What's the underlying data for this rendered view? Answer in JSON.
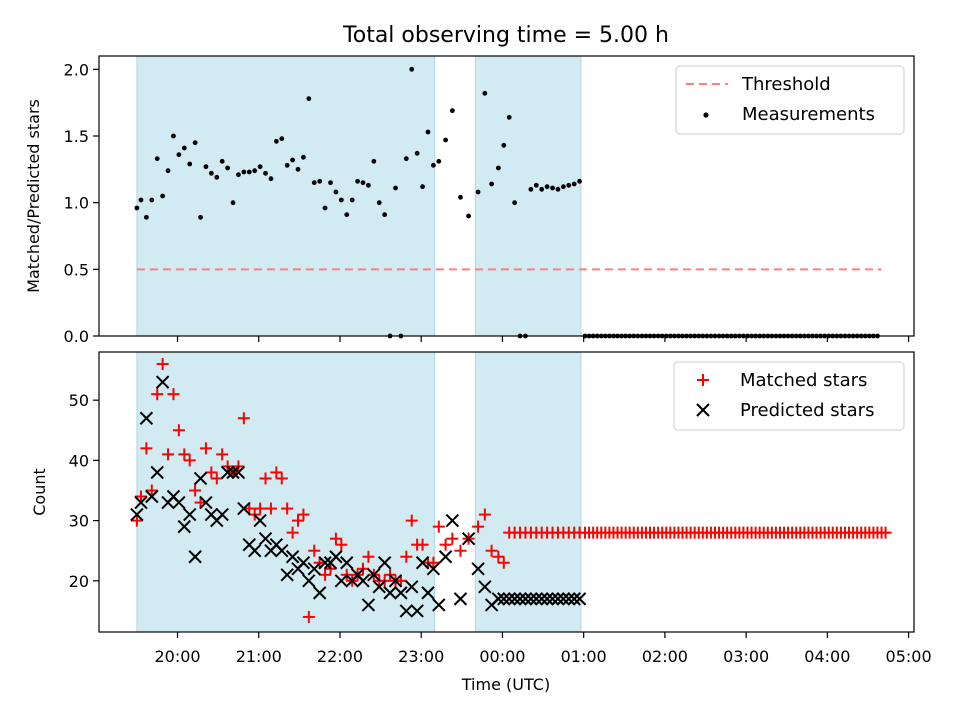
{
  "chart_data": [
    {
      "type": "scatter",
      "title": "Total observing time = 5.00 h",
      "xlabel": "",
      "ylabel": "Matched/Predicted stars",
      "ylim": [
        0,
        2.1
      ],
      "xlim": [
        "19:02",
        "05:04"
      ],
      "yticks": [
        "0.0",
        "0.5",
        "1.0",
        "1.5",
        "2.0"
      ],
      "legend": {
        "position": "top-right",
        "entries": [
          "Threshold",
          "Measurements"
        ]
      },
      "colors": {
        "threshold": "#ff7f7f",
        "measurements": "#000000",
        "shade": "#add8e6"
      },
      "shaded_ranges": [
        [
          "19:30",
          "23:10"
        ],
        [
          "23:40",
          "00:58"
        ]
      ],
      "threshold": {
        "name": "Threshold",
        "y": 0.5,
        "x": [
          "19:30",
          "04:40"
        ]
      },
      "measurements": {
        "name": "Measurements",
        "x": [
          "19:30",
          "19:33",
          "19:37",
          "19:41",
          "19:45",
          "19:49",
          "19:53",
          "19:57",
          "20:01",
          "20:05",
          "20:09",
          "20:13",
          "20:17",
          "20:21",
          "20:25",
          "20:29",
          "20:33",
          "20:37",
          "20:41",
          "20:45",
          "20:49",
          "20:53",
          "20:57",
          "21:01",
          "21:05",
          "21:09",
          "21:13",
          "21:17",
          "21:21",
          "21:25",
          "21:29",
          "21:33",
          "21:37",
          "21:41",
          "21:45",
          "21:49",
          "21:53",
          "21:57",
          "22:01",
          "22:05",
          "22:09",
          "22:13",
          "22:17",
          "22:21",
          "22:25",
          "22:29",
          "22:33",
          "22:37",
          "22:41",
          "22:45",
          "22:49",
          "22:53",
          "22:57",
          "23:01",
          "23:05",
          "23:09",
          "23:13",
          "23:18",
          "23:23",
          "23:29",
          "23:35",
          "23:42",
          "23:47",
          "23:52",
          "23:57",
          "00:01",
          "00:05",
          "00:09",
          "00:13",
          "00:17",
          "00:21",
          "00:25",
          "00:29",
          "00:33",
          "00:37",
          "00:41",
          "00:45",
          "00:49",
          "00:53",
          "00:57"
        ],
        "y": [
          0.96,
          1.02,
          0.89,
          1.02,
          1.33,
          1.05,
          1.24,
          1.5,
          1.36,
          1.41,
          1.29,
          1.45,
          0.89,
          1.27,
          1.22,
          1.19,
          1.31,
          1.26,
          1.0,
          1.21,
          1.23,
          1.23,
          1.24,
          1.27,
          1.22,
          1.18,
          1.46,
          1.48,
          1.28,
          1.32,
          1.25,
          1.34,
          1.78,
          1.15,
          1.16,
          0.96,
          1.15,
          1.08,
          1.02,
          0.91,
          1.02,
          1.16,
          1.15,
          1.13,
          1.31,
          1.0,
          0.91,
          0.0,
          1.11,
          0.0,
          1.33,
          2.0,
          1.37,
          1.12,
          1.53,
          1.28,
          1.31,
          1.47,
          1.69,
          1.04,
          0.9,
          1.08,
          1.82,
          1.14,
          1.26,
          1.43,
          1.64,
          1.0,
          0.0,
          0.0,
          1.1,
          1.13,
          1.1,
          1.12,
          1.11,
          1.1,
          1.12,
          1.13,
          1.14,
          1.16
        ],
        "zero_run": {
          "x_start": "01:01",
          "x_end": "04:38",
          "step_minutes": 3,
          "y": 0
        }
      }
    },
    {
      "type": "scatter",
      "title": "",
      "xlabel": "Time (UTC)",
      "ylabel": "Count",
      "ylim": [
        11.5,
        58
      ],
      "xlim": [
        "19:02",
        "05:04"
      ],
      "yticks": [
        "20",
        "30",
        "40",
        "50"
      ],
      "xticks": [
        "20:00",
        "21:00",
        "22:00",
        "23:00",
        "00:00",
        "01:00",
        "02:00",
        "03:00",
        "04:00",
        "05:00"
      ],
      "legend": {
        "position": "top-right",
        "entries": [
          "Matched stars",
          "Predicted stars"
        ]
      },
      "colors": {
        "matched": "#ff0000",
        "predicted": "#000000",
        "shade": "#add8e6"
      },
      "shaded_ranges": [
        [
          "19:30",
          "23:10"
        ],
        [
          "23:40",
          "00:58"
        ]
      ],
      "series": [
        {
          "name": "Matched stars",
          "marker": "plus",
          "x": [
            "19:30",
            "19:33",
            "19:37",
            "19:41",
            "19:45",
            "19:49",
            "19:53",
            "19:57",
            "20:01",
            "20:05",
            "20:09",
            "20:13",
            "20:17",
            "20:21",
            "20:25",
            "20:29",
            "20:33",
            "20:37",
            "20:41",
            "20:45",
            "20:49",
            "20:53",
            "20:57",
            "21:01",
            "21:05",
            "21:09",
            "21:13",
            "21:17",
            "21:21",
            "21:25",
            "21:29",
            "21:33",
            "21:37",
            "21:41",
            "21:45",
            "21:49",
            "21:53",
            "21:57",
            "22:01",
            "22:05",
            "22:09",
            "22:13",
            "22:17",
            "22:21",
            "22:25",
            "22:29",
            "22:33",
            "22:37",
            "22:41",
            "22:45",
            "22:49",
            "22:53",
            "22:57",
            "23:01",
            "23:05",
            "23:09",
            "23:13",
            "23:18",
            "23:23",
            "23:29",
            "23:35",
            "23:42",
            "23:47",
            "23:52",
            "23:57",
            "00:01",
            "00:05",
            "00:09",
            "00:13",
            "00:17",
            "00:21",
            "00:25",
            "00:29",
            "00:33",
            "00:37",
            "00:41",
            "00:45",
            "00:49",
            "00:53",
            "00:57"
          ],
          "y": [
            30,
            34,
            42,
            35,
            51,
            56,
            41,
            51,
            45,
            41,
            40,
            35,
            33,
            42,
            38,
            37,
            41,
            39,
            38,
            39,
            47,
            32,
            31,
            32,
            37,
            32,
            38,
            37,
            32,
            28,
            30,
            31,
            14,
            25,
            23,
            21,
            22,
            27,
            26,
            21,
            20,
            21,
            22,
            24,
            21,
            20,
            20,
            21,
            20,
            20,
            24,
            30,
            26,
            26,
            23,
            23,
            29,
            26,
            27,
            25,
            27,
            29,
            31,
            25,
            24,
            23,
            28,
            28,
            28,
            28,
            28,
            28,
            28,
            28,
            28,
            28,
            28,
            28,
            28,
            28
          ],
          "constant_run": {
            "x_start": "01:01",
            "x_end": "04:44",
            "step_minutes": 3,
            "y": 28
          }
        },
        {
          "name": "Predicted stars",
          "marker": "x",
          "x": [
            "19:30",
            "19:33",
            "19:37",
            "19:41",
            "19:45",
            "19:49",
            "19:53",
            "19:57",
            "20:01",
            "20:05",
            "20:09",
            "20:13",
            "20:17",
            "20:21",
            "20:25",
            "20:29",
            "20:33",
            "20:37",
            "20:41",
            "20:45",
            "20:49",
            "20:53",
            "20:57",
            "21:01",
            "21:05",
            "21:09",
            "21:13",
            "21:17",
            "21:21",
            "21:25",
            "21:29",
            "21:33",
            "21:37",
            "21:41",
            "21:45",
            "21:49",
            "21:53",
            "21:57",
            "22:01",
            "22:05",
            "22:09",
            "22:13",
            "22:17",
            "22:21",
            "22:25",
            "22:29",
            "22:33",
            "22:37",
            "22:41",
            "22:45",
            "22:49",
            "22:53",
            "22:57",
            "23:01",
            "23:05",
            "23:09",
            "23:13",
            "23:18",
            "23:23",
            "23:29",
            "23:35",
            "23:42",
            "23:47",
            "23:52",
            "23:57",
            "00:01",
            "00:05",
            "00:09",
            "00:13",
            "00:17",
            "00:21",
            "00:25",
            "00:29",
            "00:33",
            "00:37",
            "00:41",
            "00:45",
            "00:49",
            "00:53",
            "00:57"
          ],
          "y": [
            31,
            33,
            47,
            34,
            38,
            53,
            33,
            34,
            33,
            29,
            31,
            24,
            37,
            33,
            31,
            30,
            31,
            38,
            38,
            38,
            32,
            26,
            25,
            30,
            27,
            25,
            26,
            25,
            21,
            24,
            22,
            23,
            20,
            22,
            18,
            23,
            23,
            24,
            20,
            23,
            20,
            21,
            20,
            16,
            21,
            19,
            23,
            18,
            20,
            18,
            15,
            19,
            15,
            23,
            18,
            22,
            16,
            24,
            30,
            17,
            27,
            22,
            19,
            16,
            17,
            17,
            17,
            17,
            17,
            17,
            17,
            17,
            17,
            17,
            17,
            17,
            17,
            17,
            17,
            17
          ],
          "show_count": 62
        }
      ]
    }
  ]
}
